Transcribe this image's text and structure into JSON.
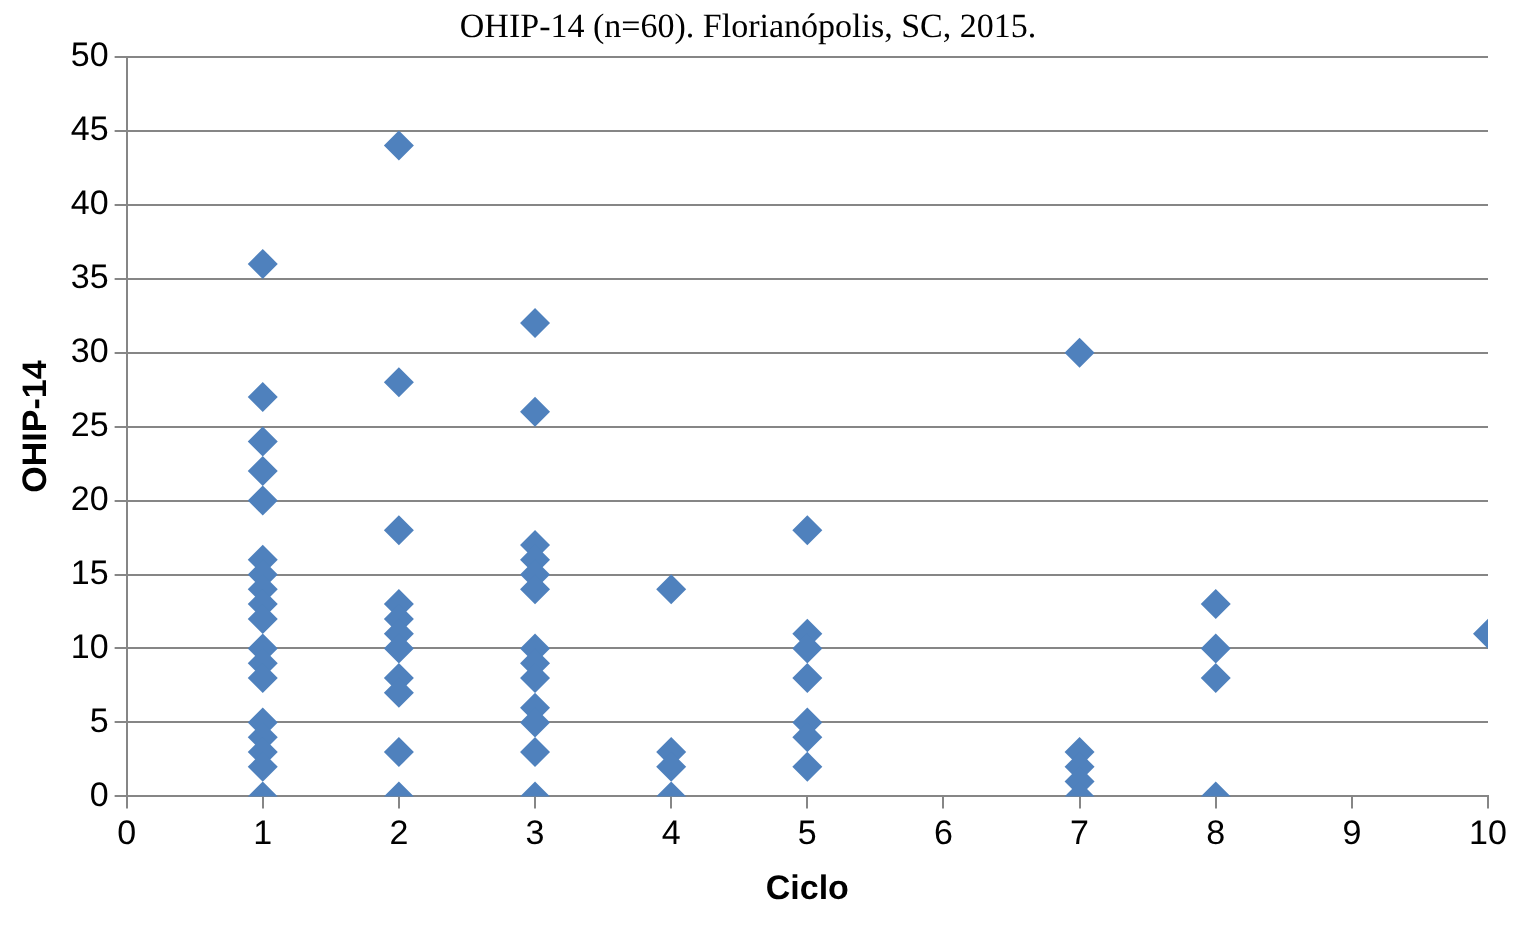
{
  "chart_data": {
    "type": "scatter",
    "title": "OHIP-14 (n=60). Florianópolis, SC, 2015.",
    "xlabel": "Ciclo",
    "ylabel": "OHIP-14",
    "x": [
      1,
      1,
      1,
      1,
      1,
      1,
      1,
      1,
      1,
      1,
      1,
      1,
      1,
      1,
      1,
      1,
      1,
      1,
      2,
      2,
      2,
      2,
      2,
      2,
      2,
      2,
      2,
      2,
      2,
      3,
      3,
      3,
      3,
      3,
      3,
      3,
      3,
      3,
      3,
      3,
      3,
      3,
      4,
      4,
      4,
      4,
      5,
      5,
      5,
      5,
      5,
      5,
      5,
      7,
      7,
      7,
      7,
      7,
      8,
      8,
      8,
      8,
      10
    ],
    "series": [
      {
        "color": "#4f81bd",
        "values": [
          36,
          27,
          24,
          22,
          20,
          16,
          15,
          14,
          13,
          12,
          10,
          9,
          8,
          5,
          4,
          3,
          2,
          0,
          44,
          28,
          18,
          13,
          12,
          11,
          10,
          8,
          7,
          3,
          0,
          32,
          26,
          17,
          16,
          15,
          14,
          10,
          9,
          8,
          6,
          5,
          3,
          0,
          14,
          3,
          2,
          0,
          18,
          11,
          10,
          8,
          5,
          4,
          2,
          30,
          3,
          2,
          1,
          0,
          13,
          10,
          8,
          0,
          11
        ]
      }
    ],
    "xlim": [
      0,
      10
    ],
    "xticks": [
      0,
      1,
      2,
      3,
      4,
      5,
      6,
      7,
      8,
      9,
      10
    ],
    "ylim": [
      0,
      50
    ],
    "yticks": [
      0,
      5,
      10,
      15,
      20,
      25,
      30,
      35,
      40,
      45,
      50
    ],
    "grid": "y",
    "legend": false,
    "marker": "diamond"
  }
}
